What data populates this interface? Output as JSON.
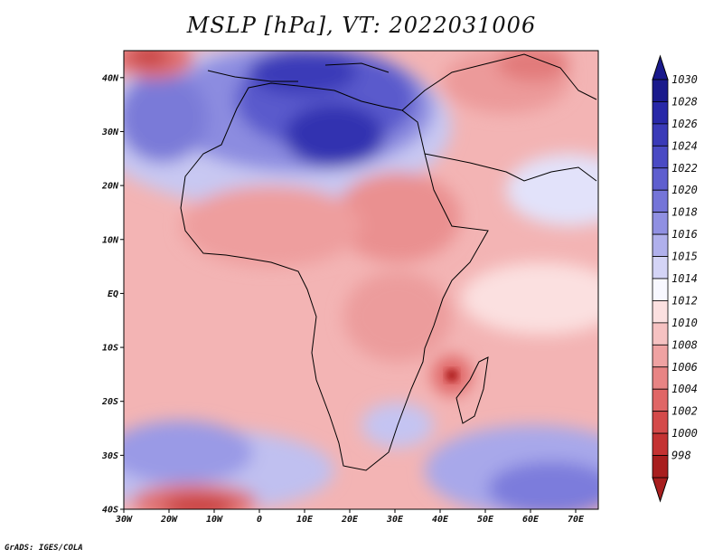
{
  "title": "MSLP [hPa], VT: 2022031006",
  "credit": "GrADS: IGES/COLA",
  "map": {
    "projection": "latlon",
    "lon_range": [
      -30,
      75
    ],
    "lat_range": [
      -40,
      45
    ],
    "lat_ticks": [
      {
        "value": 40,
        "label": "40N"
      },
      {
        "value": 30,
        "label": "30N"
      },
      {
        "value": 20,
        "label": "20N"
      },
      {
        "value": 10,
        "label": "10N"
      },
      {
        "value": 0,
        "label": "EQ"
      },
      {
        "value": -10,
        "label": "10S"
      },
      {
        "value": -20,
        "label": "20S"
      },
      {
        "value": -30,
        "label": "30S"
      },
      {
        "value": -40,
        "label": "40S"
      }
    ],
    "lon_ticks": [
      {
        "value": -30,
        "label": "30W"
      },
      {
        "value": -20,
        "label": "20W"
      },
      {
        "value": -10,
        "label": "10W"
      },
      {
        "value": 0,
        "label": "0"
      },
      {
        "value": 10,
        "label": "10E"
      },
      {
        "value": 20,
        "label": "20E"
      },
      {
        "value": 30,
        "label": "30E"
      },
      {
        "value": 40,
        "label": "40E"
      },
      {
        "value": 50,
        "label": "50E"
      },
      {
        "value": 60,
        "label": "60E"
      },
      {
        "value": 70,
        "label": "70E"
      }
    ]
  },
  "colorbar": {
    "levels": [
      "1030",
      "1028",
      "1026",
      "1024",
      "1022",
      "1020",
      "1018",
      "1016",
      "1015",
      "1014",
      "1012",
      "1010",
      "1008",
      "1006",
      "1004",
      "1002",
      "1000",
      "998"
    ],
    "colors": [
      "#1a1a8c",
      "#2828a8",
      "#3a3ab8",
      "#4a4ac4",
      "#5e5ecf",
      "#7474d8",
      "#9090e2",
      "#b0b0ec",
      "#d4d4f6",
      "#f8f8ff",
      "#fbe0e0",
      "#f6c2c2",
      "#efa2a2",
      "#e88484",
      "#e06666",
      "#d44a4a",
      "#c43232",
      "#a81e1e"
    ],
    "top_arrow_color": "#1a1a8c",
    "bottom_arrow_color": "#a81e1e"
  },
  "field_colors": {
    "ocean_low": "#f3b4b4",
    "land_low": "#ee9e9e",
    "high_core": "#3030b0",
    "high_mid": "#6a6ad6",
    "high_edge": "#c4c4f2",
    "neutral": "#fafaff",
    "low_core": "#b02020",
    "coast": "#000000"
  }
}
